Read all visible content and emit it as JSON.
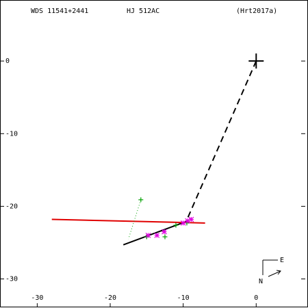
{
  "chart_data": {
    "type": "scatter",
    "title": "WDS 11541+2441",
    "subtitle": "HJ  512AC",
    "reference": "(Hrt2017a)",
    "xlim": [
      -35.1,
      7.1
    ],
    "ylim": [
      -34,
      8.4
    ],
    "xticks": [
      -30,
      -20,
      -10,
      0
    ],
    "yticks": [
      0,
      -10,
      -20,
      -30
    ],
    "compass": {
      "east": "E",
      "north": "N"
    },
    "series": [
      {
        "style": "dashed",
        "color": "#000000",
        "x": [
          0,
          -9.6
        ],
        "values": [
          0,
          -22.1
        ]
      },
      {
        "style": "solid",
        "color": "#000000",
        "x": [
          -18.2,
          -9.6
        ],
        "values": [
          -25.3,
          -22.1
        ]
      },
      {
        "style": "solid",
        "color": "#e00000",
        "x": [
          -28,
          -7
        ],
        "values": [
          -21.8,
          -22.3
        ]
      },
      {
        "style": "dotted",
        "color": "#00a000",
        "x": [
          -15.8,
          -17.5
        ],
        "values": [
          -19.1,
          -24.5
        ]
      },
      {
        "marker": "plus",
        "color": "#000000",
        "x": [
          0
        ],
        "values": [
          0
        ]
      },
      {
        "marker": "plus",
        "color": "#00a000",
        "x": [
          -15.8,
          -15,
          -12.5,
          -11,
          -9.5
        ],
        "values": [
          -19.1,
          -24.2,
          -24.2,
          -22.6,
          -22.3
        ]
      },
      {
        "marker": "asterisk",
        "color": "#e000e0",
        "x": [
          -14.8,
          -13.6,
          -12.6,
          -10,
          -9.4,
          -8.9
        ],
        "values": [
          -24,
          -24,
          -23.5,
          -22.3,
          -22,
          -21.8
        ]
      }
    ]
  }
}
